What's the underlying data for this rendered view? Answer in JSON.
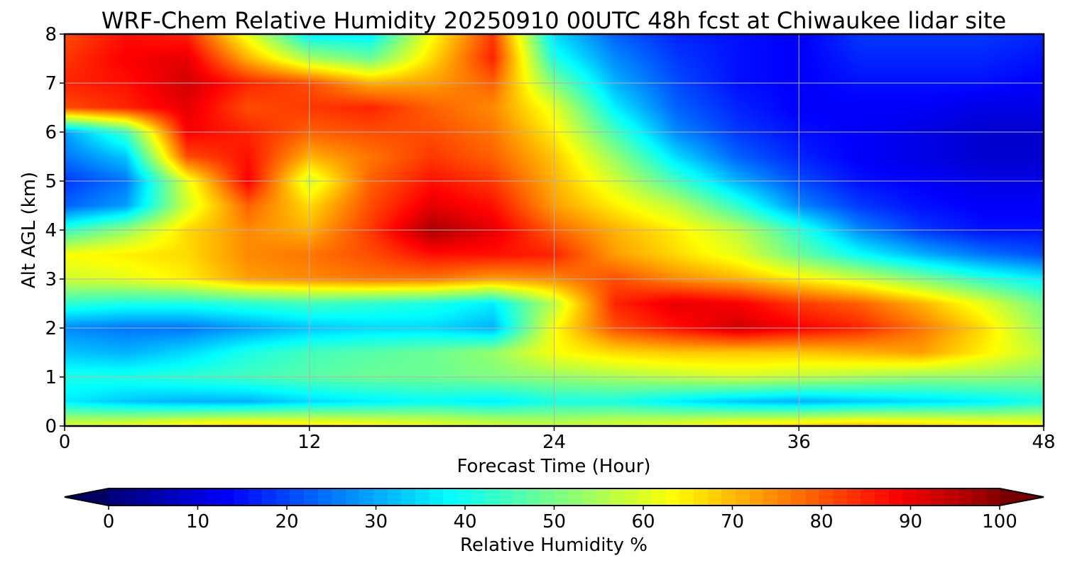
{
  "chart_data": {
    "type": "heatmap",
    "title": "WRF-Chem Relative Humidity 20250910 00UTC 48h fcst at Chiwaukee lidar site",
    "xlabel": "Forecast Time (Hour)",
    "ylabel": "Alt AGL (km)",
    "xlim": [
      0,
      48
    ],
    "ylim": [
      0,
      8
    ],
    "xticks": [
      "0",
      "12",
      "24",
      "36",
      "48"
    ],
    "yticks": [
      "0",
      "1",
      "2",
      "3",
      "4",
      "5",
      "6",
      "7",
      "8"
    ],
    "grid": true,
    "colormap": "jet",
    "colorbar": {
      "label": "Relative Humidity %",
      "range": [
        0,
        100
      ],
      "ticks": [
        "0",
        "10",
        "20",
        "30",
        "40",
        "50",
        "60",
        "70",
        "80",
        "90",
        "100"
      ],
      "extend": "both",
      "placement": "bottom"
    },
    "x": [
      0,
      3,
      6,
      9,
      12,
      15,
      18,
      21,
      24,
      27,
      30,
      33,
      36,
      39,
      42,
      45,
      48
    ],
    "y": [
      0,
      0.5,
      1,
      1.5,
      2,
      2.5,
      3,
      3.5,
      4,
      4.5,
      5,
      5.5,
      6,
      6.5,
      7,
      7.5,
      8
    ],
    "z": [
      [
        60,
        62,
        66,
        68,
        66,
        64,
        62,
        60,
        58,
        60,
        62,
        66,
        68,
        70,
        68,
        66,
        64
      ],
      [
        36,
        32,
        30,
        30,
        34,
        36,
        38,
        36,
        40,
        40,
        36,
        32,
        30,
        32,
        34,
        36,
        40
      ],
      [
        40,
        40,
        42,
        44,
        46,
        48,
        48,
        50,
        52,
        54,
        56,
        58,
        56,
        54,
        52,
        52,
        50
      ],
      [
        32,
        30,
        34,
        40,
        44,
        46,
        48,
        52,
        62,
        66,
        68,
        68,
        68,
        70,
        72,
        64,
        56
      ],
      [
        26,
        24,
        24,
        28,
        32,
        34,
        34,
        30,
        62,
        80,
        86,
        92,
        88,
        84,
        76,
        66,
        52
      ],
      [
        42,
        40,
        40,
        42,
        44,
        42,
        40,
        36,
        56,
        84,
        90,
        88,
        82,
        78,
        70,
        60,
        48
      ],
      [
        58,
        60,
        64,
        72,
        74,
        76,
        76,
        72,
        74,
        80,
        74,
        70,
        64,
        58,
        50,
        42,
        36
      ],
      [
        62,
        64,
        66,
        74,
        76,
        80,
        86,
        86,
        84,
        72,
        66,
        60,
        48,
        38,
        30,
        24,
        20
      ],
      [
        42,
        52,
        66,
        74,
        70,
        82,
        96,
        90,
        78,
        70,
        64,
        56,
        42,
        26,
        18,
        14,
        14
      ],
      [
        22,
        28,
        58,
        78,
        66,
        80,
        90,
        86,
        72,
        64,
        56,
        42,
        26,
        18,
        14,
        12,
        12
      ],
      [
        18,
        24,
        60,
        88,
        58,
        78,
        86,
        82,
        70,
        58,
        44,
        30,
        20,
        14,
        12,
        10,
        10
      ],
      [
        24,
        32,
        80,
        86,
        70,
        76,
        82,
        78,
        68,
        52,
        34,
        22,
        16,
        12,
        10,
        8,
        8
      ],
      [
        28,
        44,
        88,
        84,
        78,
        80,
        80,
        76,
        64,
        44,
        26,
        18,
        14,
        12,
        10,
        8,
        8
      ],
      [
        80,
        84,
        90,
        80,
        82,
        84,
        78,
        74,
        60,
        36,
        22,
        16,
        12,
        12,
        12,
        10,
        10
      ],
      [
        84,
        86,
        92,
        84,
        80,
        70,
        72,
        78,
        50,
        30,
        20,
        14,
        12,
        14,
        14,
        14,
        12
      ],
      [
        82,
        88,
        90,
        70,
        54,
        48,
        66,
        84,
        40,
        26,
        18,
        14,
        12,
        16,
        16,
        16,
        14
      ],
      [
        80,
        86,
        84,
        60,
        36,
        36,
        62,
        82,
        34,
        22,
        16,
        14,
        12,
        18,
        18,
        18,
        16
      ]
    ]
  }
}
